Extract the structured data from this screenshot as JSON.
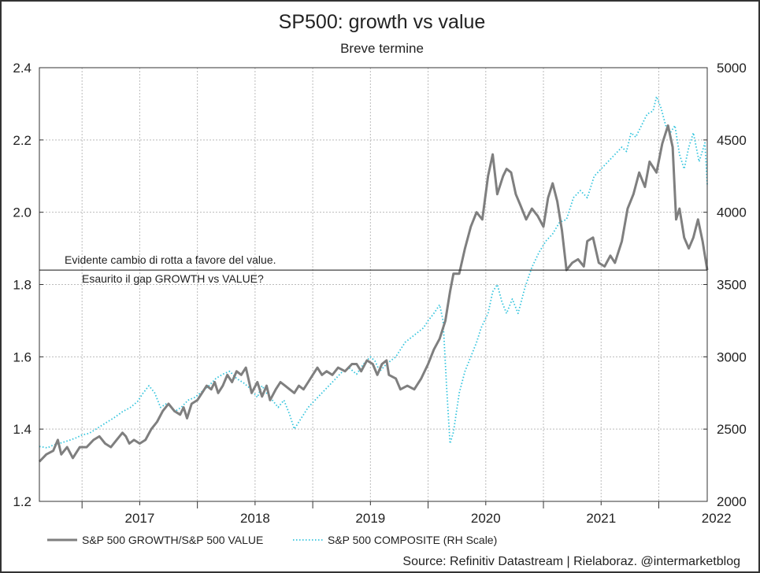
{
  "chart_data": {
    "type": "line",
    "title": "SP500: growth vs value",
    "subtitle": "Breve termine",
    "source": "Source: Refinitiv Datastream | Rielaboraz. @intermarketblog",
    "x_tick_labels": [
      "2017",
      "2018",
      "2019",
      "2020",
      "2021",
      "2022"
    ],
    "x_range": [
      2016.63,
      2022.42
    ],
    "y_left": {
      "range": [
        1.2,
        2.4
      ],
      "ticks": [
        1.2,
        1.4,
        1.6,
        1.8,
        2.0,
        2.2,
        2.4
      ],
      "tick_labels": [
        "1.2",
        "1.4",
        "1.6",
        "1.8",
        "2.0",
        "2.2",
        "2.4"
      ]
    },
    "y_right": {
      "range": [
        2000,
        5000
      ],
      "ticks": [
        2000,
        2500,
        3000,
        3500,
        4000,
        4500,
        5000
      ],
      "tick_labels": [
        "2000",
        "2500",
        "3000",
        "3500",
        "4000",
        "4500",
        "5000"
      ]
    },
    "grid": true,
    "legend_position": "bottom",
    "reference_line": {
      "y": 1.84,
      "axis": "left"
    },
    "annotations": [
      {
        "text": "Evidente cambio di rotta a favore del value."
      },
      {
        "text": "Esaurito il gap GROWTH vs VALUE?"
      }
    ],
    "colors": {
      "growth_value": "#7f7f7f",
      "composite": "#33c4dd",
      "grid": "#bbbbbb",
      "axis": "#333333",
      "reference_line": "#111111"
    },
    "series": [
      {
        "name": "S&P 500 GROWTH/S&P 500 VALUE",
        "axis": "left",
        "style": "solid",
        "points": [
          [
            2016.63,
            1.31
          ],
          [
            2016.69,
            1.33
          ],
          [
            2016.75,
            1.34
          ],
          [
            2016.79,
            1.37
          ],
          [
            2016.82,
            1.33
          ],
          [
            2016.87,
            1.35
          ],
          [
            2016.92,
            1.32
          ],
          [
            2016.98,
            1.35
          ],
          [
            2017.04,
            1.35
          ],
          [
            2017.1,
            1.37
          ],
          [
            2017.15,
            1.38
          ],
          [
            2017.2,
            1.36
          ],
          [
            2017.25,
            1.35
          ],
          [
            2017.3,
            1.37
          ],
          [
            2017.35,
            1.39
          ],
          [
            2017.38,
            1.38
          ],
          [
            2017.41,
            1.36
          ],
          [
            2017.45,
            1.37
          ],
          [
            2017.5,
            1.36
          ],
          [
            2017.55,
            1.37
          ],
          [
            2017.6,
            1.4
          ],
          [
            2017.65,
            1.42
          ],
          [
            2017.7,
            1.45
          ],
          [
            2017.75,
            1.47
          ],
          [
            2017.8,
            1.45
          ],
          [
            2017.85,
            1.44
          ],
          [
            2017.88,
            1.46
          ],
          [
            2017.91,
            1.43
          ],
          [
            2017.95,
            1.47
          ],
          [
            2018.0,
            1.48
          ],
          [
            2018.04,
            1.5
          ],
          [
            2018.08,
            1.52
          ],
          [
            2018.12,
            1.51
          ],
          [
            2018.15,
            1.53
          ],
          [
            2018.18,
            1.5
          ],
          [
            2018.22,
            1.52
          ],
          [
            2018.26,
            1.55
          ],
          [
            2018.3,
            1.53
          ],
          [
            2018.34,
            1.56
          ],
          [
            2018.38,
            1.55
          ],
          [
            2018.42,
            1.57
          ],
          [
            2018.47,
            1.5
          ],
          [
            2018.52,
            1.53
          ],
          [
            2018.56,
            1.49
          ],
          [
            2018.6,
            1.52
          ],
          [
            2018.63,
            1.48
          ],
          [
            2018.68,
            1.51
          ],
          [
            2018.72,
            1.53
          ],
          [
            2018.76,
            1.52
          ],
          [
            2018.8,
            1.51
          ],
          [
            2018.84,
            1.5
          ],
          [
            2018.88,
            1.52
          ],
          [
            2018.92,
            1.51
          ],
          [
            2018.96,
            1.53
          ],
          [
            2019.0,
            1.55
          ],
          [
            2019.04,
            1.57
          ],
          [
            2019.08,
            1.55
          ],
          [
            2019.12,
            1.56
          ],
          [
            2019.17,
            1.55
          ],
          [
            2019.22,
            1.57
          ],
          [
            2019.28,
            1.56
          ],
          [
            2019.34,
            1.58
          ],
          [
            2019.38,
            1.58
          ],
          [
            2019.42,
            1.56
          ],
          [
            2019.47,
            1.59
          ],
          [
            2019.52,
            1.58
          ],
          [
            2019.56,
            1.55
          ],
          [
            2019.6,
            1.58
          ],
          [
            2019.64,
            1.59
          ],
          [
            2019.66,
            1.55
          ],
          [
            2019.72,
            1.54
          ],
          [
            2019.76,
            1.51
          ],
          [
            2019.82,
            1.52
          ],
          [
            2019.88,
            1.51
          ],
          [
            2019.94,
            1.54
          ],
          [
            2020.0,
            1.58
          ],
          [
            2020.05,
            1.62
          ],
          [
            2020.1,
            1.65
          ],
          [
            2020.15,
            1.7
          ],
          [
            2020.19,
            1.78
          ],
          [
            2020.22,
            1.83
          ],
          [
            2020.27,
            1.83
          ],
          [
            2020.32,
            1.9
          ],
          [
            2020.37,
            1.96
          ],
          [
            2020.42,
            2.0
          ],
          [
            2020.47,
            1.98
          ],
          [
            2020.52,
            2.1
          ],
          [
            2020.56,
            2.16
          ],
          [
            2020.6,
            2.05
          ],
          [
            2020.65,
            2.1
          ],
          [
            2020.68,
            2.12
          ],
          [
            2020.72,
            2.11
          ],
          [
            2020.76,
            2.05
          ],
          [
            2020.8,
            2.02
          ],
          [
            2020.85,
            1.98
          ],
          [
            2020.9,
            2.01
          ],
          [
            2020.95,
            1.99
          ],
          [
            2021.0,
            1.96
          ],
          [
            2021.04,
            2.04
          ],
          [
            2021.08,
            2.08
          ],
          [
            2021.12,
            2.03
          ],
          [
            2021.16,
            1.95
          ],
          [
            2021.2,
            1.84
          ],
          [
            2021.25,
            1.86
          ],
          [
            2021.3,
            1.87
          ],
          [
            2021.35,
            1.85
          ],
          [
            2021.38,
            1.92
          ],
          [
            2021.43,
            1.93
          ],
          [
            2021.48,
            1.86
          ],
          [
            2021.53,
            1.85
          ],
          [
            2021.58,
            1.88
          ],
          [
            2021.62,
            1.86
          ],
          [
            2021.68,
            1.92
          ],
          [
            2021.73,
            2.01
          ],
          [
            2021.78,
            2.05
          ],
          [
            2021.83,
            2.11
          ],
          [
            2021.88,
            2.07
          ],
          [
            2021.92,
            2.14
          ],
          [
            2021.98,
            2.11
          ],
          [
            2022.03,
            2.19
          ],
          [
            2022.08,
            2.24
          ],
          [
            2022.12,
            2.18
          ],
          [
            2022.15,
            1.98
          ],
          [
            2022.18,
            2.01
          ],
          [
            2022.22,
            1.93
          ],
          [
            2022.26,
            1.9
          ],
          [
            2022.3,
            1.93
          ],
          [
            2022.34,
            1.98
          ],
          [
            2022.38,
            1.92
          ],
          [
            2022.42,
            1.84
          ]
        ]
      },
      {
        "name": "S&P 500 COMPOSITE (RH Scale)",
        "axis": "right",
        "style": "dotted",
        "points": [
          [
            2016.63,
            2380
          ],
          [
            2016.7,
            2370
          ],
          [
            2016.75,
            2390
          ],
          [
            2016.8,
            2400
          ],
          [
            2016.88,
            2420
          ],
          [
            2016.95,
            2440
          ],
          [
            2017.0,
            2460
          ],
          [
            2017.06,
            2470
          ],
          [
            2017.12,
            2500
          ],
          [
            2017.2,
            2540
          ],
          [
            2017.28,
            2580
          ],
          [
            2017.35,
            2620
          ],
          [
            2017.42,
            2650
          ],
          [
            2017.48,
            2690
          ],
          [
            2017.53,
            2750
          ],
          [
            2017.58,
            2800
          ],
          [
            2017.63,
            2750
          ],
          [
            2017.68,
            2650
          ],
          [
            2017.74,
            2680
          ],
          [
            2017.8,
            2620
          ],
          [
            2017.86,
            2650
          ],
          [
            2017.92,
            2700
          ],
          [
            2017.98,
            2720
          ],
          [
            2018.04,
            2760
          ],
          [
            2018.1,
            2800
          ],
          [
            2018.16,
            2850
          ],
          [
            2018.22,
            2880
          ],
          [
            2018.28,
            2900
          ],
          [
            2018.34,
            2850
          ],
          [
            2018.4,
            2820
          ],
          [
            2018.46,
            2780
          ],
          [
            2018.52,
            2720
          ],
          [
            2018.56,
            2800
          ],
          [
            2018.6,
            2750
          ],
          [
            2018.65,
            2700
          ],
          [
            2018.7,
            2650
          ],
          [
            2018.75,
            2700
          ],
          [
            2018.8,
            2600
          ],
          [
            2018.84,
            2500
          ],
          [
            2018.88,
            2550
          ],
          [
            2018.92,
            2600
          ],
          [
            2018.96,
            2650
          ],
          [
            2019.02,
            2700
          ],
          [
            2019.08,
            2750
          ],
          [
            2019.14,
            2800
          ],
          [
            2019.2,
            2850
          ],
          [
            2019.26,
            2900
          ],
          [
            2019.32,
            2920
          ],
          [
            2019.38,
            2880
          ],
          [
            2019.44,
            2950
          ],
          [
            2019.5,
            3000
          ],
          [
            2019.54,
            2970
          ],
          [
            2019.58,
            2900
          ],
          [
            2019.64,
            2950
          ],
          [
            2019.72,
            3000
          ],
          [
            2019.8,
            3100
          ],
          [
            2019.88,
            3150
          ],
          [
            2019.96,
            3200
          ],
          [
            2020.0,
            3250
          ],
          [
            2020.05,
            3300
          ],
          [
            2020.1,
            3360
          ],
          [
            2020.13,
            3250
          ],
          [
            2020.16,
            2800
          ],
          [
            2020.19,
            2400
          ],
          [
            2020.22,
            2480
          ],
          [
            2020.27,
            2750
          ],
          [
            2020.32,
            2900
          ],
          [
            2020.37,
            3000
          ],
          [
            2020.42,
            3100
          ],
          [
            2020.46,
            3200
          ],
          [
            2020.52,
            3300
          ],
          [
            2020.56,
            3450
          ],
          [
            2020.6,
            3500
          ],
          [
            2020.64,
            3380
          ],
          [
            2020.68,
            3300
          ],
          [
            2020.73,
            3400
          ],
          [
            2020.78,
            3300
          ],
          [
            2020.84,
            3480
          ],
          [
            2020.9,
            3620
          ],
          [
            2020.96,
            3720
          ],
          [
            2021.02,
            3800
          ],
          [
            2021.08,
            3850
          ],
          [
            2021.14,
            3930
          ],
          [
            2021.2,
            3950
          ],
          [
            2021.26,
            4100
          ],
          [
            2021.32,
            4150
          ],
          [
            2021.38,
            4100
          ],
          [
            2021.44,
            4250
          ],
          [
            2021.5,
            4300
          ],
          [
            2021.56,
            4350
          ],
          [
            2021.62,
            4400
          ],
          [
            2021.68,
            4450
          ],
          [
            2021.72,
            4420
          ],
          [
            2021.76,
            4550
          ],
          [
            2021.8,
            4520
          ],
          [
            2021.85,
            4600
          ],
          [
            2021.9,
            4680
          ],
          [
            2021.95,
            4700
          ],
          [
            2021.98,
            4800
          ],
          [
            2022.02,
            4720
          ],
          [
            2022.06,
            4600
          ],
          [
            2022.1,
            4550
          ],
          [
            2022.14,
            4600
          ],
          [
            2022.18,
            4400
          ],
          [
            2022.22,
            4300
          ],
          [
            2022.26,
            4450
          ],
          [
            2022.3,
            4550
          ],
          [
            2022.35,
            4350
          ],
          [
            2022.4,
            4480
          ],
          [
            2022.42,
            4190
          ]
        ]
      }
    ]
  }
}
